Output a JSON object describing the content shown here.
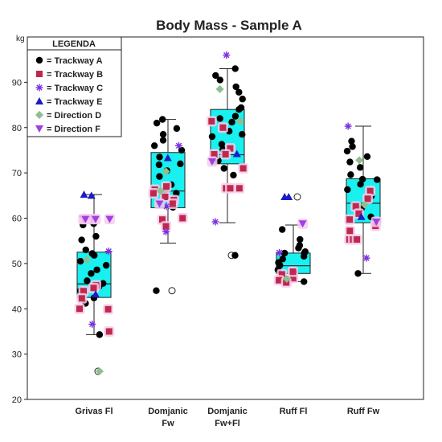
{
  "chart_data": {
    "type": "box",
    "title": "Body Mass - Sample A",
    "ylabel": "kg",
    "ylim": [
      20,
      100
    ],
    "yticks": [
      "20",
      "30",
      "40",
      "50",
      "60",
      "70",
      "80",
      "90"
    ],
    "categories": [
      {
        "line1": "Grivas Fl",
        "line2": ""
      },
      {
        "line1": "Domjanic",
        "line2": "Fw"
      },
      {
        "line1": "Domjanic",
        "line2": "Fw+Fl"
      },
      {
        "line1": "Ruff  Fl",
        "line2": ""
      },
      {
        "line1": "Ruff Fw",
        "line2": ""
      }
    ],
    "legend": {
      "title": "LEGENDA",
      "entries": [
        {
          "label": "= Trackway A",
          "marker": "circle",
          "color": "#000000"
        },
        {
          "label": "= Trackway B",
          "marker": "square",
          "color": "#c0284a"
        },
        {
          "label": "= Trackway C",
          "marker": "asterisk",
          "color": "#7b2fe0"
        },
        {
          "label": "= Trackway E",
          "marker": "triangle-up",
          "color": "#1c1cc8"
        },
        {
          "label": "= Direction D",
          "marker": "diamond",
          "color": "#8fbf8f"
        },
        {
          "label": "= Direction F",
          "marker": "triangle-down",
          "color": "#a040e0"
        }
      ]
    },
    "box_color": "#19f0f0",
    "boxes": [
      {
        "category": "Grivas Fl",
        "whisker_low": 34.3,
        "q1": 42.5,
        "median": 45.5,
        "q3": 52.5,
        "whisker_high": 65.2,
        "outliers": [
          26.2
        ]
      },
      {
        "category": "Domjanic Fw",
        "whisker_low": 54.5,
        "q1": 62.3,
        "median": 66,
        "q3": 74.5,
        "whisker_high": 81.8,
        "outliers": [
          44
        ]
      },
      {
        "category": "Domjanic Fw+Fl",
        "whisker_low": 59,
        "q1": 72,
        "median": 74,
        "q3": 84,
        "whisker_high": 93,
        "outliers": [
          51.8
        ]
      },
      {
        "category": "Ruff  Fl",
        "whisker_low": 46,
        "q1": 47.8,
        "median": 49.5,
        "q3": 52.3,
        "whisker_high": 58.5,
        "outliers": [
          64.7
        ]
      },
      {
        "category": "Ruff Fw",
        "whisker_low": 47.8,
        "q1": 59,
        "median": 63.3,
        "q3": 68.7,
        "whisker_high": 80.3,
        "outliers": []
      }
    ],
    "points": [
      [
        {
          "y": 58.8,
          "m": "A"
        },
        {
          "y": 56,
          "m": "A"
        },
        {
          "y": 55.2,
          "m": "A"
        },
        {
          "y": 53,
          "m": "A"
        },
        {
          "y": 52.2,
          "m": "A"
        },
        {
          "y": 51.8,
          "m": "A"
        },
        {
          "y": 50.5,
          "m": "A"
        },
        {
          "y": 49.6,
          "m": "A"
        },
        {
          "y": 48.6,
          "m": "A"
        },
        {
          "y": 47.8,
          "m": "A"
        },
        {
          "y": 46.2,
          "m": "A"
        },
        {
          "y": 45.6,
          "m": "A"
        },
        {
          "y": 44.9,
          "m": "A"
        },
        {
          "y": 44,
          "m": "A"
        },
        {
          "y": 42.4,
          "m": "A"
        },
        {
          "y": 41.2,
          "m": "A"
        },
        {
          "y": 34.3,
          "m": "A"
        },
        {
          "y": 58.5,
          "m": "A"
        },
        {
          "y": 45.2,
          "m": "B"
        },
        {
          "y": 44.6,
          "m": "B"
        },
        {
          "y": 43.9,
          "m": "B"
        },
        {
          "y": 40,
          "m": "B"
        },
        {
          "y": 39.9,
          "m": "B"
        },
        {
          "y": 35,
          "m": "B"
        },
        {
          "y": 42.3,
          "m": "B"
        },
        {
          "y": 36.6,
          "m": "C"
        },
        {
          "y": 52.7,
          "m": "C"
        },
        {
          "y": 65.2,
          "m": "E"
        },
        {
          "y": 65,
          "m": "E"
        },
        {
          "y": 43.2,
          "m": "E"
        },
        {
          "y": 26.2,
          "m": "D"
        },
        {
          "y": 50.8,
          "m": "D"
        },
        {
          "y": 59.8,
          "m": "F"
        },
        {
          "y": 59.8,
          "m": "F"
        },
        {
          "y": 59.8,
          "m": "F"
        },
        {
          "y": 59.8,
          "m": "F"
        },
        {
          "y": 59.8,
          "m": "F"
        }
      ],
      [
        {
          "y": 81.8,
          "m": "A"
        },
        {
          "y": 81,
          "m": "A"
        },
        {
          "y": 79.8,
          "m": "A"
        },
        {
          "y": 78.5,
          "m": "A"
        },
        {
          "y": 77.2,
          "m": "A"
        },
        {
          "y": 76,
          "m": "A"
        },
        {
          "y": 75,
          "m": "A"
        },
        {
          "y": 73.5,
          "m": "A"
        },
        {
          "y": 72,
          "m": "A"
        },
        {
          "y": 70.5,
          "m": "A"
        },
        {
          "y": 69.2,
          "m": "A"
        },
        {
          "y": 67.4,
          "m": "A"
        },
        {
          "y": 66.2,
          "m": "A"
        },
        {
          "y": 65.5,
          "m": "A"
        },
        {
          "y": 62.4,
          "m": "A"
        },
        {
          "y": 44,
          "m": "A"
        },
        {
          "y": 71.8,
          "m": "A"
        },
        {
          "y": 67,
          "m": "B"
        },
        {
          "y": 66.3,
          "m": "B"
        },
        {
          "y": 65.5,
          "m": "B"
        },
        {
          "y": 64.7,
          "m": "B"
        },
        {
          "y": 64,
          "m": "B"
        },
        {
          "y": 63.2,
          "m": "B"
        },
        {
          "y": 60,
          "m": "B"
        },
        {
          "y": 59.7,
          "m": "B"
        },
        {
          "y": 58.2,
          "m": "B"
        },
        {
          "y": 73.3,
          "m": "E"
        },
        {
          "y": 57,
          "m": "C"
        },
        {
          "y": 76,
          "m": "C"
        },
        {
          "y": 62.6,
          "m": "C"
        },
        {
          "y": 70.3,
          "m": "D"
        },
        {
          "y": 66,
          "m": "D"
        },
        {
          "y": 63.2,
          "m": "F"
        }
      ],
      [
        {
          "y": 93,
          "m": "A"
        },
        {
          "y": 91.5,
          "m": "A"
        },
        {
          "y": 90.5,
          "m": "A"
        },
        {
          "y": 89,
          "m": "A"
        },
        {
          "y": 87.8,
          "m": "A"
        },
        {
          "y": 86.3,
          "m": "A"
        },
        {
          "y": 84.4,
          "m": "A"
        },
        {
          "y": 84,
          "m": "A"
        },
        {
          "y": 82.5,
          "m": "A"
        },
        {
          "y": 81.2,
          "m": "A"
        },
        {
          "y": 79.2,
          "m": "A"
        },
        {
          "y": 78,
          "m": "A"
        },
        {
          "y": 76.3,
          "m": "A"
        },
        {
          "y": 75.2,
          "m": "A"
        },
        {
          "y": 72.7,
          "m": "A"
        },
        {
          "y": 71,
          "m": "A"
        },
        {
          "y": 69.5,
          "m": "A"
        },
        {
          "y": 51.8,
          "m": "A"
        },
        {
          "y": 82,
          "m": "A"
        },
        {
          "y": 78.5,
          "m": "A"
        },
        {
          "y": 81.4,
          "m": "B"
        },
        {
          "y": 80,
          "m": "B"
        },
        {
          "y": 75.4,
          "m": "B"
        },
        {
          "y": 74.1,
          "m": "B"
        },
        {
          "y": 74.1,
          "m": "B"
        },
        {
          "y": 71,
          "m": "B"
        },
        {
          "y": 66.6,
          "m": "B"
        },
        {
          "y": 66.6,
          "m": "B"
        },
        {
          "y": 66.6,
          "m": "B"
        },
        {
          "y": 96,
          "m": "C"
        },
        {
          "y": 59.2,
          "m": "C"
        },
        {
          "y": 74.2,
          "m": "E"
        },
        {
          "y": 81.4,
          "m": "D"
        },
        {
          "y": 88.5,
          "m": "D"
        },
        {
          "y": 72.5,
          "m": "F"
        }
      ],
      [
        {
          "y": 57.5,
          "m": "A"
        },
        {
          "y": 55.3,
          "m": "A"
        },
        {
          "y": 54,
          "m": "A"
        },
        {
          "y": 53.4,
          "m": "A"
        },
        {
          "y": 52.6,
          "m": "A"
        },
        {
          "y": 52.3,
          "m": "A"
        },
        {
          "y": 51.6,
          "m": "A"
        },
        {
          "y": 51,
          "m": "A"
        },
        {
          "y": 50.2,
          "m": "A"
        },
        {
          "y": 49.6,
          "m": "A"
        },
        {
          "y": 48.6,
          "m": "A"
        },
        {
          "y": 48,
          "m": "A"
        },
        {
          "y": 46,
          "m": "A"
        },
        {
          "y": 52.3,
          "m": "A"
        },
        {
          "y": 47.6,
          "m": "B"
        },
        {
          "y": 46.8,
          "m": "B"
        },
        {
          "y": 46.3,
          "m": "B"
        },
        {
          "y": 45.8,
          "m": "B"
        },
        {
          "y": 48.2,
          "m": "B"
        },
        {
          "y": 52.4,
          "m": "C"
        },
        {
          "y": 64.7,
          "m": "E"
        },
        {
          "y": 64.7,
          "m": "E"
        },
        {
          "y": 46.6,
          "m": "D"
        },
        {
          "y": 58.8,
          "m": "F"
        }
      ],
      [
        {
          "y": 77,
          "m": "A"
        },
        {
          "y": 75.8,
          "m": "A"
        },
        {
          "y": 74.8,
          "m": "A"
        },
        {
          "y": 73.6,
          "m": "A"
        },
        {
          "y": 72.4,
          "m": "A"
        },
        {
          "y": 71.2,
          "m": "A"
        },
        {
          "y": 69.6,
          "m": "A"
        },
        {
          "y": 68.6,
          "m": "A"
        },
        {
          "y": 67.5,
          "m": "A"
        },
        {
          "y": 66.3,
          "m": "A"
        },
        {
          "y": 64.9,
          "m": "A"
        },
        {
          "y": 62.2,
          "m": "A"
        },
        {
          "y": 60.3,
          "m": "A"
        },
        {
          "y": 47.8,
          "m": "A"
        },
        {
          "y": 68.5,
          "m": "A"
        },
        {
          "y": 66,
          "m": "B"
        },
        {
          "y": 64.3,
          "m": "B"
        },
        {
          "y": 62.6,
          "m": "B"
        },
        {
          "y": 61,
          "m": "B"
        },
        {
          "y": 59.7,
          "m": "B"
        },
        {
          "y": 58.3,
          "m": "B"
        },
        {
          "y": 57.2,
          "m": "B"
        },
        {
          "y": 55.3,
          "m": "B"
        },
        {
          "y": 55.3,
          "m": "B"
        },
        {
          "y": 55.3,
          "m": "B"
        },
        {
          "y": 80.3,
          "m": "C"
        },
        {
          "y": 51.2,
          "m": "C"
        },
        {
          "y": 60.3,
          "m": "E"
        },
        {
          "y": 72.8,
          "m": "D"
        },
        {
          "y": 63,
          "m": "D"
        },
        {
          "y": 59.2,
          "m": "F"
        }
      ]
    ]
  }
}
